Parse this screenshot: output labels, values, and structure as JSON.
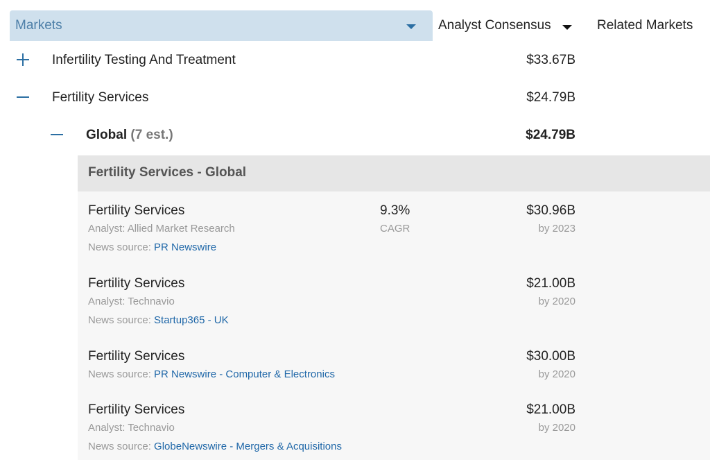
{
  "header": {
    "markets_label": "Markets",
    "consensus_label": "Analyst Consensus",
    "related_label": "Related Markets"
  },
  "tree": {
    "rows": [
      {
        "toggle": "expand",
        "label": "Infertility Testing And Treatment",
        "value": "$33.67B"
      },
      {
        "toggle": "collapse",
        "label": "Fertility Services",
        "value": "$24.79B"
      }
    ],
    "global": {
      "label": "Global",
      "count": "(7 est.)",
      "value": "$24.79B"
    }
  },
  "panel": {
    "title": "Fertility Services - Global",
    "estimates": [
      {
        "name": "Fertility Services",
        "analyst_prefix": "Analyst: ",
        "analyst": "Allied Market Research",
        "news_prefix": "News source: ",
        "news": "PR Newswire",
        "cagr": "9.3%",
        "cagr_label": "CAGR",
        "value": "$30.96B",
        "year": "by 2023"
      },
      {
        "name": "Fertility Services",
        "analyst_prefix": "Analyst: ",
        "analyst": "Technavio",
        "news_prefix": "News source: ",
        "news": "Startup365 - UK",
        "value": "$21.00B",
        "year": "by 2020"
      },
      {
        "name": "Fertility Services",
        "news_prefix": "News source: ",
        "news": "PR Newswire - Computer & Electronics",
        "value": "$30.00B",
        "year": "by 2020"
      },
      {
        "name": "Fertility Services",
        "analyst_prefix": "Analyst: ",
        "analyst": "Technavio",
        "news_prefix": "News source: ",
        "news": "GlobeNewswire - Mergers & Acquisitions",
        "value": "$21.00B",
        "year": "by 2020"
      }
    ]
  },
  "icons": {
    "expand": "plus-icon",
    "collapse": "minus-icon",
    "dropdown": "caret-down-icon"
  },
  "colors": {
    "header_bg": "#cfe0ed",
    "accent": "#2c6fa3",
    "link": "#1f67a8",
    "panel_bg": "#f7f7f7",
    "panel_title_bg": "#e6e6e6"
  }
}
